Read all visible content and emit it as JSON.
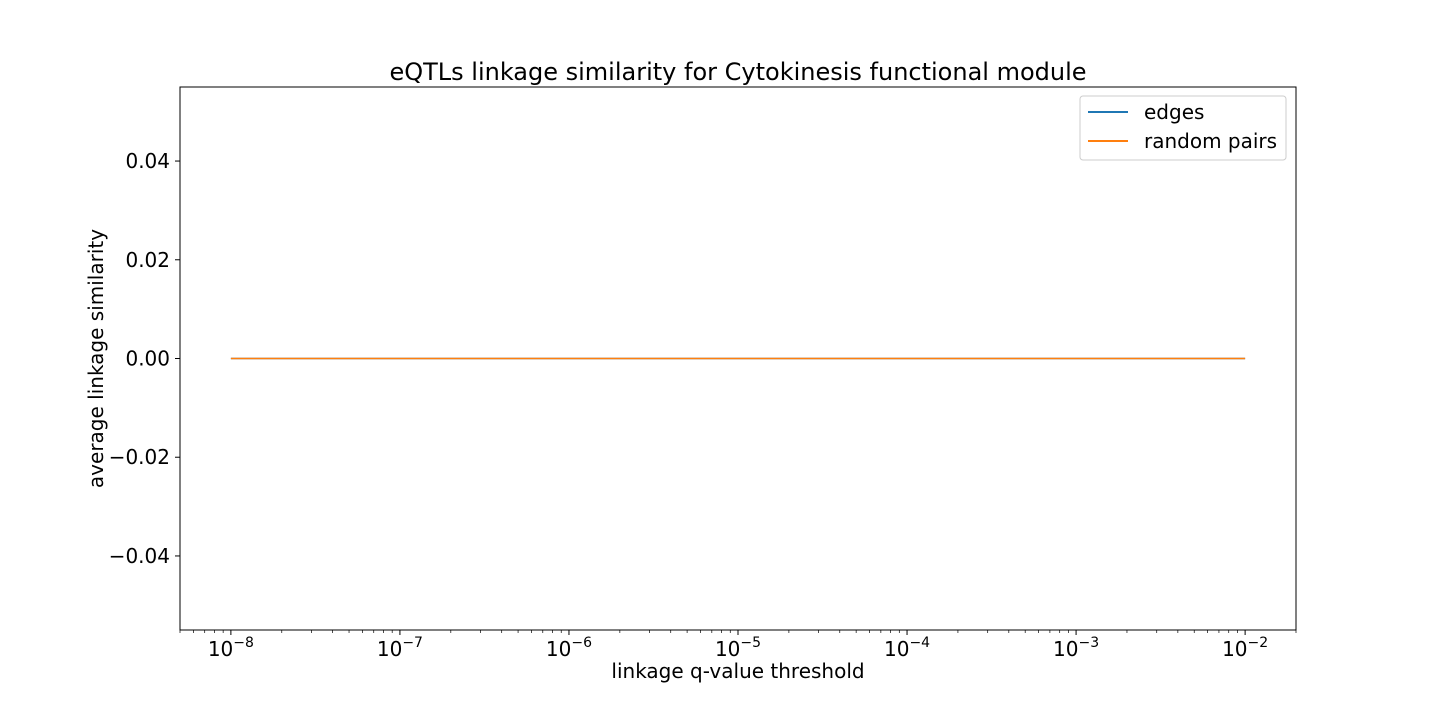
{
  "chart_data": {
    "type": "line",
    "title": "eQTLs linkage similarity for Cytokinesis functional module",
    "xlabel": "linkage q-value threshold",
    "ylabel": "average linkage similarity",
    "x_scale": "log",
    "x_tick_exponents": [
      -8,
      -7,
      -6,
      -5,
      -4,
      -3,
      -2
    ],
    "x_tick_base": "10",
    "xlim": [
      5e-09,
      0.02
    ],
    "ylim": [
      -0.055,
      0.055
    ],
    "y_ticks": [
      0.04,
      0.02,
      0.0,
      -0.02,
      -0.04
    ],
    "y_tick_labels": [
      "0.04",
      "0.02",
      "0.00",
      "−0.02",
      "−0.04"
    ],
    "grid": false,
    "legend_position": "top-right",
    "series": [
      {
        "name": "edges",
        "color": "#1f77b4",
        "x": [
          1e-08,
          1e-07,
          1e-06,
          1e-05,
          0.0001,
          0.001,
          0.01
        ],
        "y": [
          0,
          0,
          0,
          0,
          0,
          0,
          0
        ]
      },
      {
        "name": "random pairs",
        "color": "#ff7f0e",
        "x": [
          1e-08,
          1e-07,
          1e-06,
          1e-05,
          0.0001,
          0.001,
          0.01
        ],
        "y": [
          0,
          0,
          0,
          0,
          0,
          0,
          0
        ]
      }
    ]
  }
}
